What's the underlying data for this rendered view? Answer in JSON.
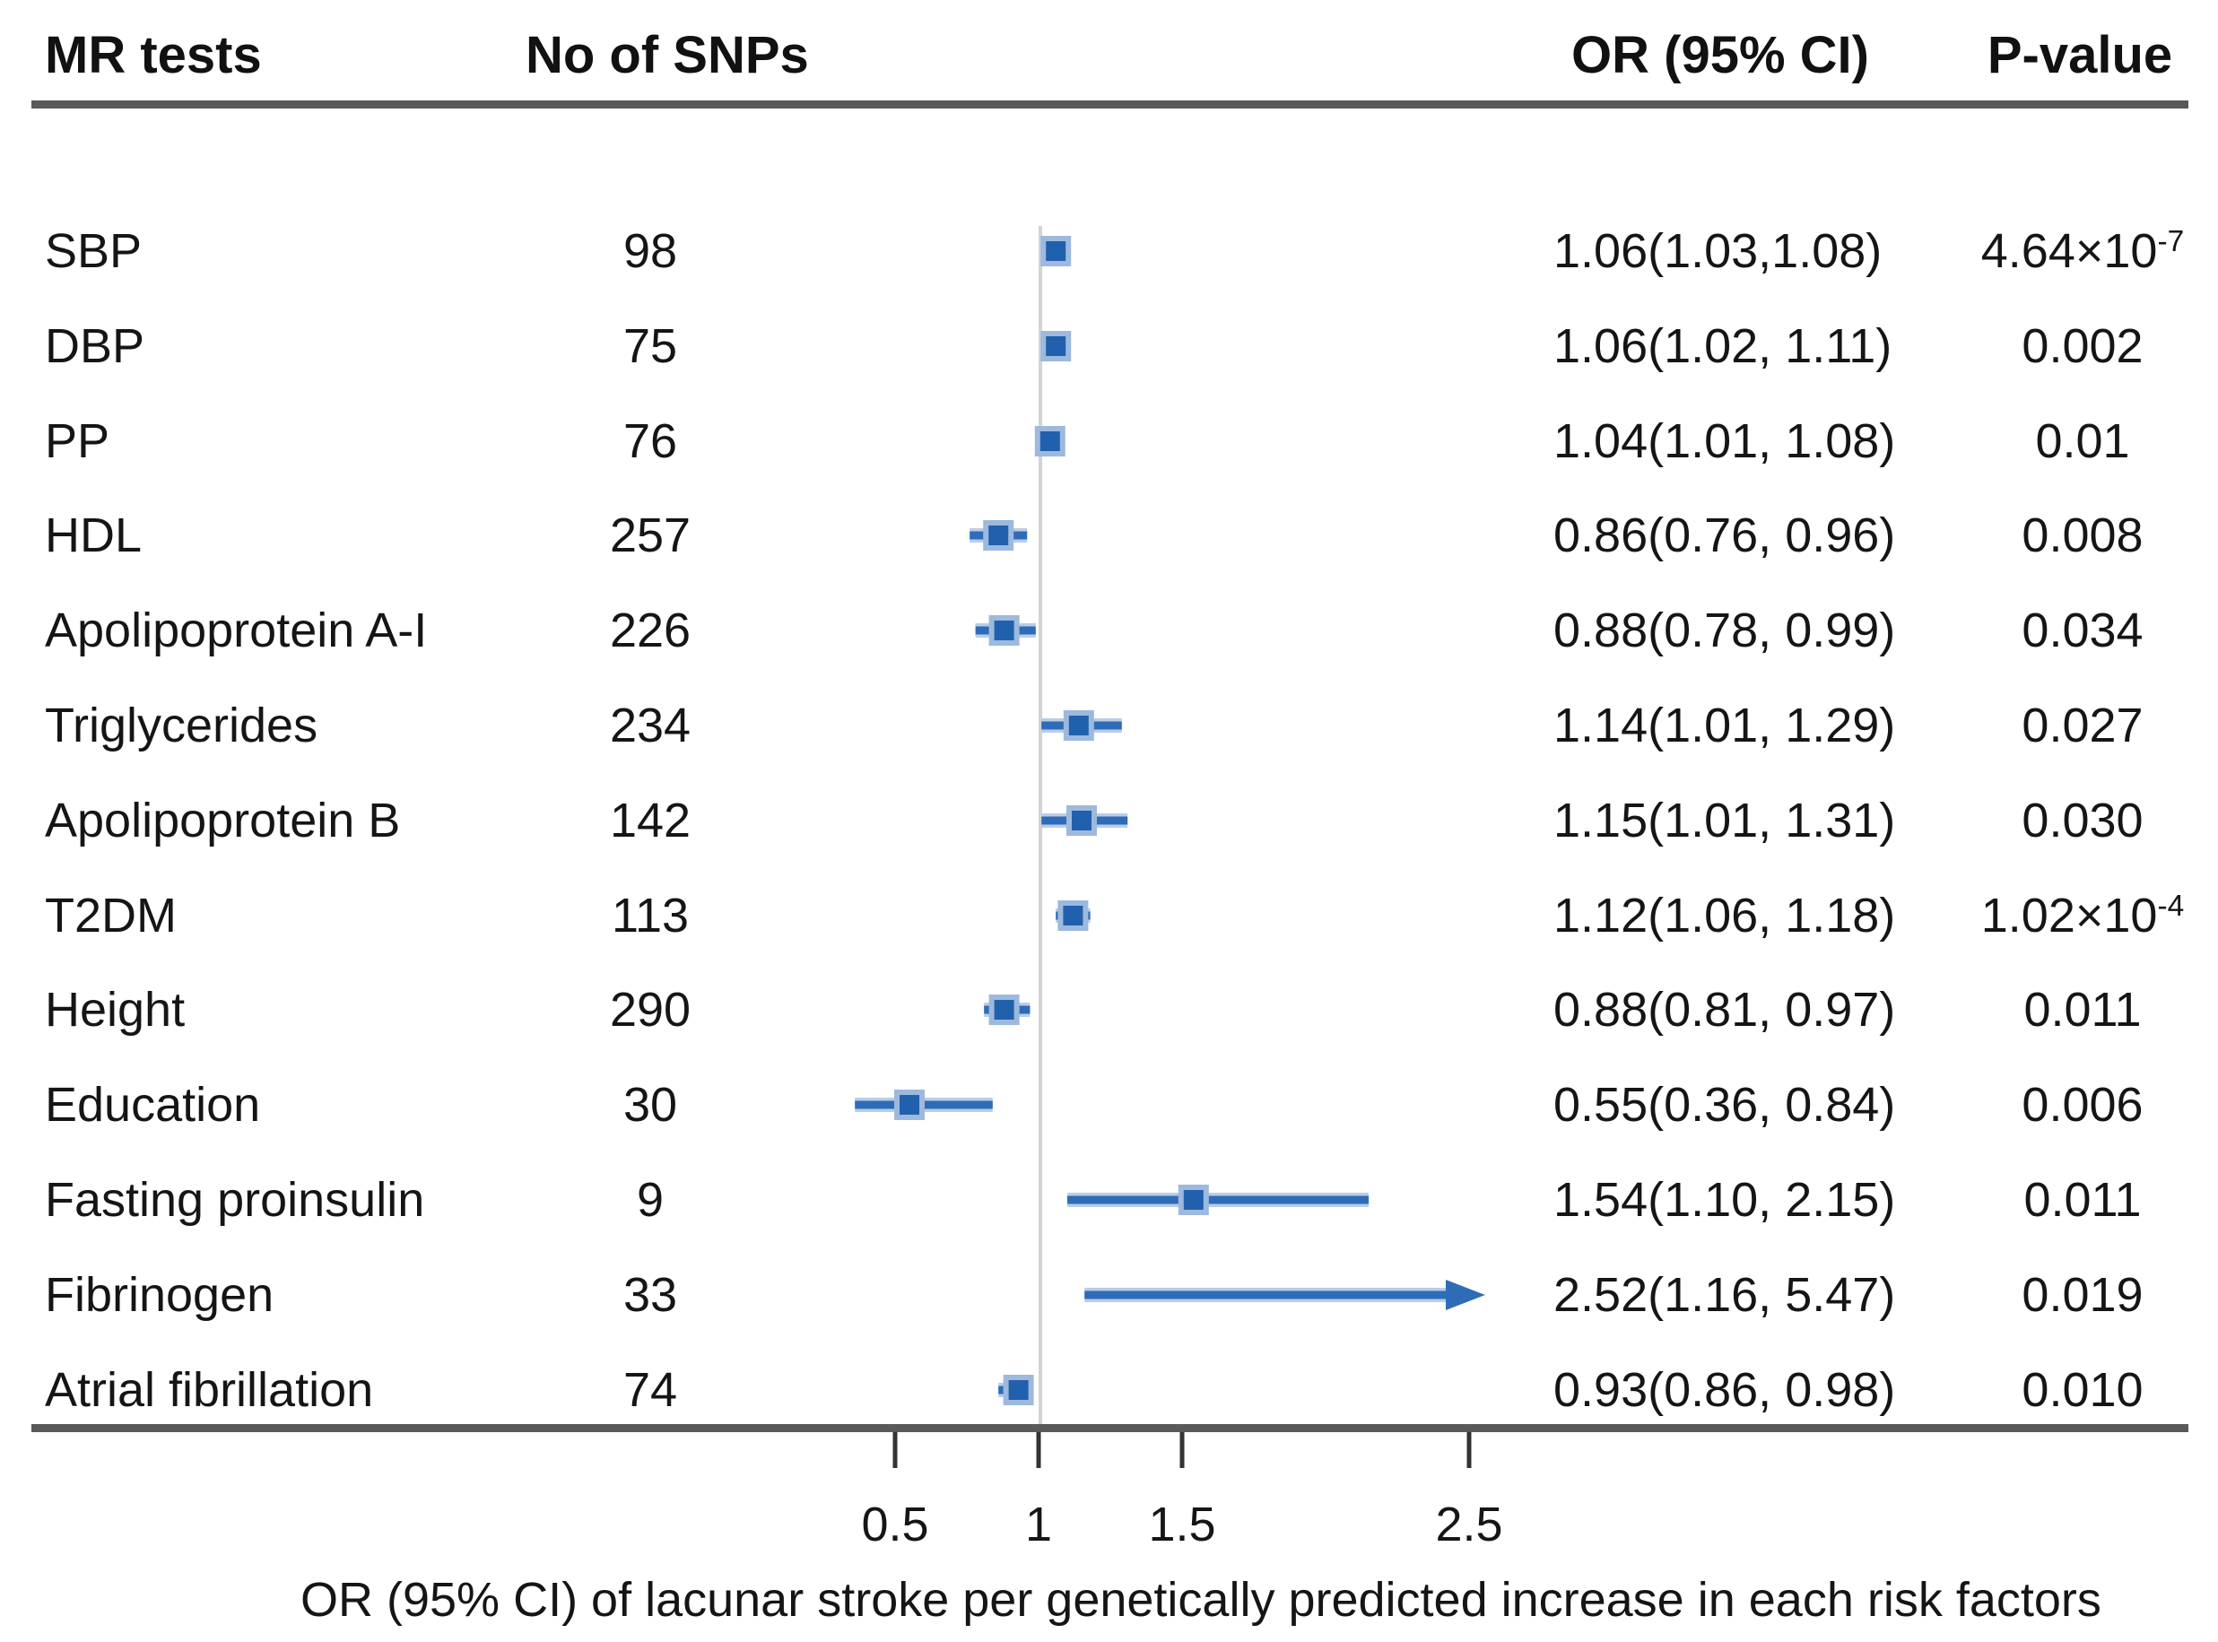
{
  "header": {
    "col_tests": "MR tests",
    "col_snps": "No of SNPs",
    "col_or": "OR (95% CI)",
    "col_p": "P-value"
  },
  "chart_data": {
    "type": "forest",
    "title": "",
    "xlabel": "OR (95% CI) of lacunar stroke per genetically predicted increase in each risk factors",
    "x_ticks": [
      0.5,
      1,
      1.5,
      2.5
    ],
    "x_tick_labels": [
      "0.5",
      "1",
      "1.5",
      "2.5"
    ],
    "x_reference": 1,
    "xlim": [
      0.3,
      2.55
    ],
    "grid": false,
    "legend": "none",
    "rows": [
      {
        "label": "SBP",
        "snps": "98",
        "or": 1.06,
        "ci_lo": 1.03,
        "ci_hi": 1.08,
        "or_text": "1.06(1.03,1.08)",
        "p_text": "4.64×10^-7",
        "arrow_right": false
      },
      {
        "label": "DBP",
        "snps": "75",
        "or": 1.06,
        "ci_lo": 1.02,
        "ci_hi": 1.11,
        "or_text": "1.06(1.02, 1.11)",
        "p_text": "0.002",
        "arrow_right": false
      },
      {
        "label": "PP",
        "snps": "76",
        "or": 1.04,
        "ci_lo": 1.01,
        "ci_hi": 1.08,
        "or_text": "1.04(1.01, 1.08)",
        "p_text": "0.01",
        "arrow_right": false
      },
      {
        "label": "HDL",
        "snps": "257",
        "or": 0.86,
        "ci_lo": 0.76,
        "ci_hi": 0.96,
        "or_text": "0.86(0.76, 0.96)",
        "p_text": "0.008",
        "arrow_right": false
      },
      {
        "label": "Apolipoprotein A-I",
        "snps": "226",
        "or": 0.88,
        "ci_lo": 0.78,
        "ci_hi": 0.99,
        "or_text": "0.88(0.78, 0.99)",
        "p_text": "0.034",
        "arrow_right": false
      },
      {
        "label": "Triglycerides",
        "snps": "234",
        "or": 1.14,
        "ci_lo": 1.01,
        "ci_hi": 1.29,
        "or_text": "1.14(1.01, 1.29)",
        "p_text": "0.027",
        "arrow_right": false
      },
      {
        "label": "Apolipoprotein B",
        "snps": "142",
        "or": 1.15,
        "ci_lo": 1.01,
        "ci_hi": 1.31,
        "or_text": "1.15(1.01, 1.31)",
        "p_text": "0.030",
        "arrow_right": false
      },
      {
        "label": "T2DM",
        "snps": "113",
        "or": 1.12,
        "ci_lo": 1.06,
        "ci_hi": 1.18,
        "or_text": "1.12(1.06, 1.18)",
        "p_text": "1.02×10^-4",
        "arrow_right": false
      },
      {
        "label": "Height",
        "snps": "290",
        "or": 0.88,
        "ci_lo": 0.81,
        "ci_hi": 0.97,
        "or_text": "0.88(0.81, 0.97)",
        "p_text": "0.011",
        "arrow_right": false
      },
      {
        "label": "Education",
        "snps": "30",
        "or": 0.55,
        "ci_lo": 0.36,
        "ci_hi": 0.84,
        "or_text": "0.55(0.36, 0.84)",
        "p_text": "0.006",
        "arrow_right": false
      },
      {
        "label": "Fasting proinsulin",
        "snps": "9",
        "or": 1.54,
        "ci_lo": 1.1,
        "ci_hi": 2.15,
        "or_text": "1.54(1.10, 2.15)",
        "p_text": "0.011",
        "arrow_right": false
      },
      {
        "label": "Fibrinogen",
        "snps": "33",
        "or": 2.52,
        "ci_lo": 1.16,
        "ci_hi": 5.47,
        "or_text": "2.52(1.16, 5.47)",
        "p_text": "0.019",
        "arrow_right": true
      },
      {
        "label": "Atrial fibrillation",
        "snps": "74",
        "or": 0.93,
        "ci_lo": 0.86,
        "ci_hi": 0.98,
        "or_text": "0.93(0.86, 0.98)",
        "p_text": "0.010",
        "arrow_right": false
      }
    ],
    "colors": {
      "marker": "#2160ac",
      "marker_halo": "#9db9dd",
      "ci_line": "#2f6cb7",
      "ci_halo": "#b9cde9",
      "reference_line": "#d4d4d4",
      "rule": "#595959",
      "tick": "#333333",
      "text": "#151515"
    }
  }
}
